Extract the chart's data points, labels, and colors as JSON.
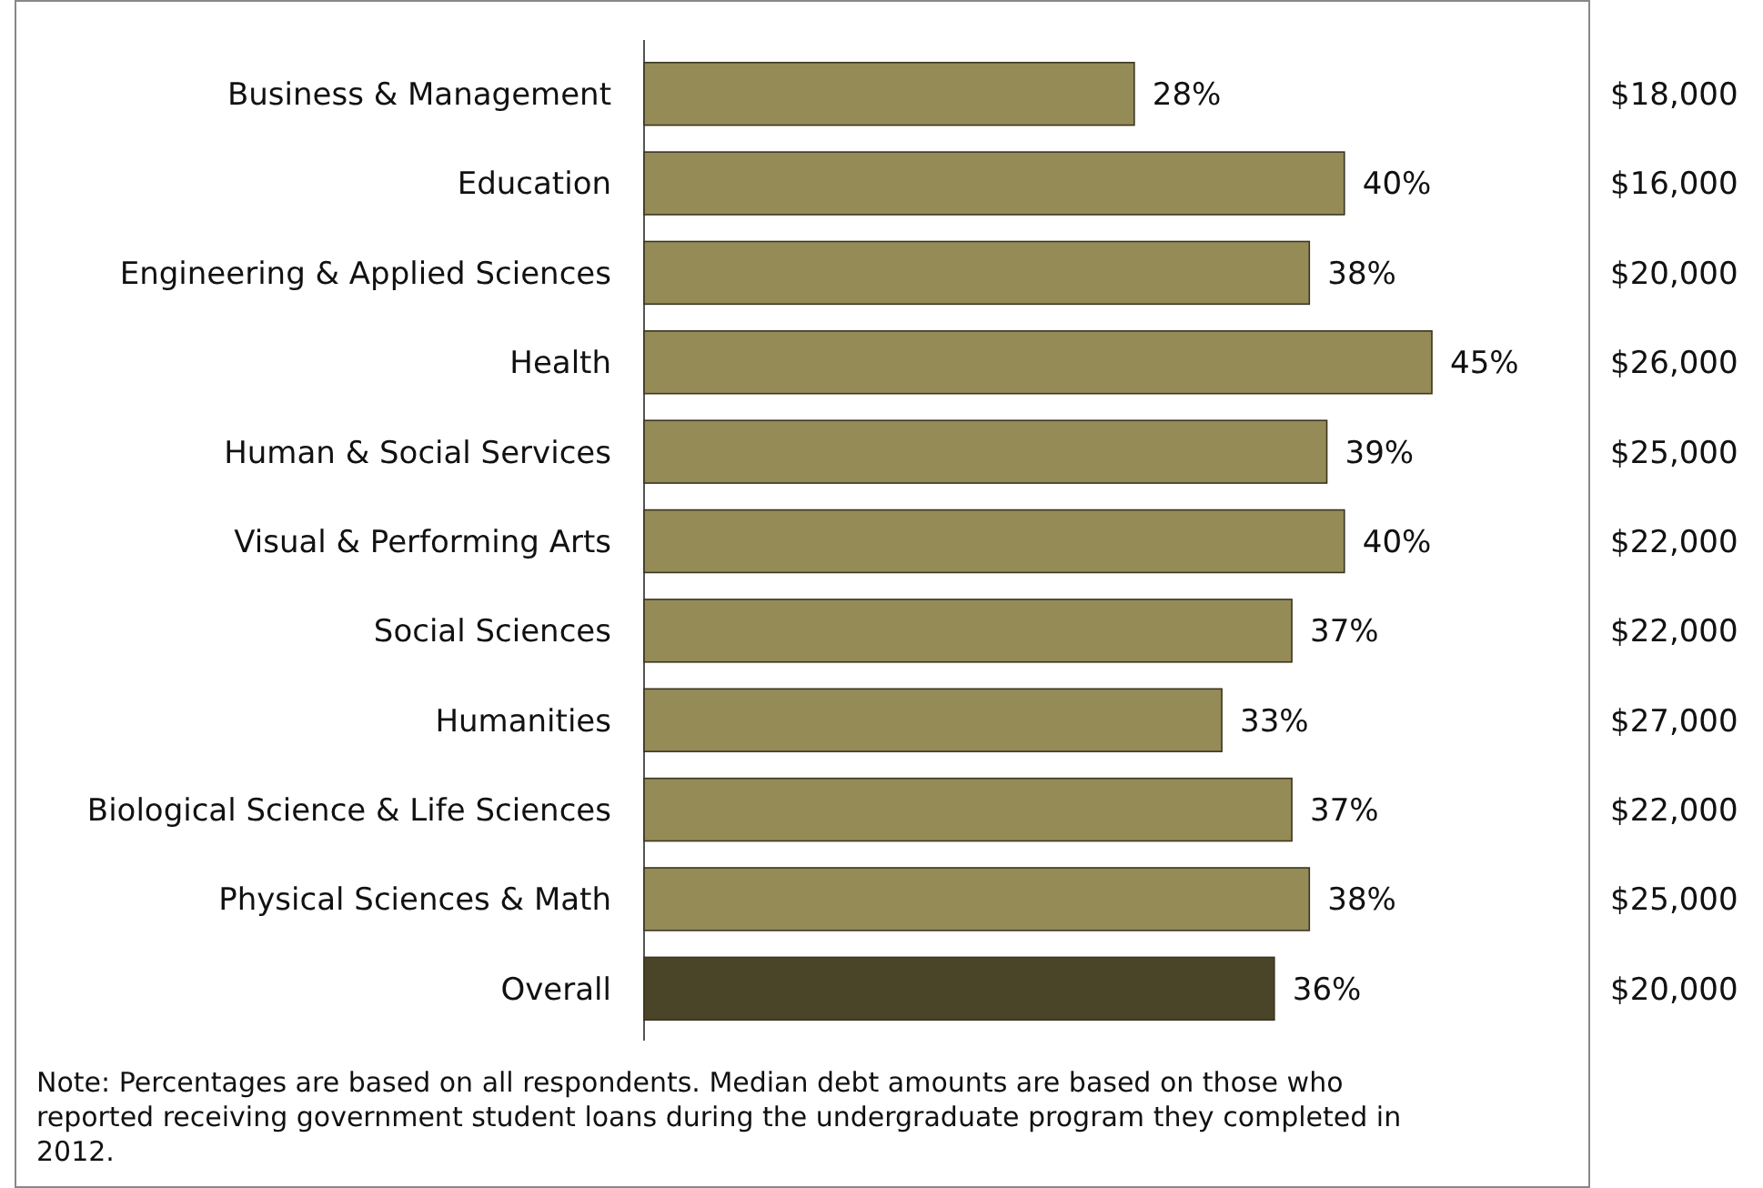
{
  "chart_data": {
    "type": "bar",
    "orientation": "horizontal",
    "categories": [
      "Business & Management",
      "Education",
      "Engineering & Applied Sciences",
      "Health",
      "Human & Social Services",
      "Visual & Performing Arts",
      "Social Sciences",
      "Humanities",
      "Biological Science & Life Sciences",
      "Physical Sciences & Math",
      "Overall"
    ],
    "values": [
      28,
      40,
      38,
      45,
      39,
      40,
      37,
      33,
      37,
      38,
      36
    ],
    "value_labels": [
      "28%",
      "40%",
      "38%",
      "45%",
      "39%",
      "40%",
      "37%",
      "33%",
      "37%",
      "38%",
      "36%"
    ],
    "colors": [
      "#958b57",
      "#958b57",
      "#958b57",
      "#958b57",
      "#958b57",
      "#958b57",
      "#958b57",
      "#958b57",
      "#958b57",
      "#958b57",
      "#4a4428"
    ],
    "annotations": [
      "$18,000",
      "$16,000",
      "$20,000",
      "$26,000",
      "$25,000",
      "$22,000",
      "$22,000",
      "$27,000",
      "$22,000",
      "$25,000",
      "$20,000",
      "Note: Percentages are based on all respondents. Median debt amounts are based on those who reported receiving government student loans during the undergraduate program they completed in 2012."
    ]
  }
}
